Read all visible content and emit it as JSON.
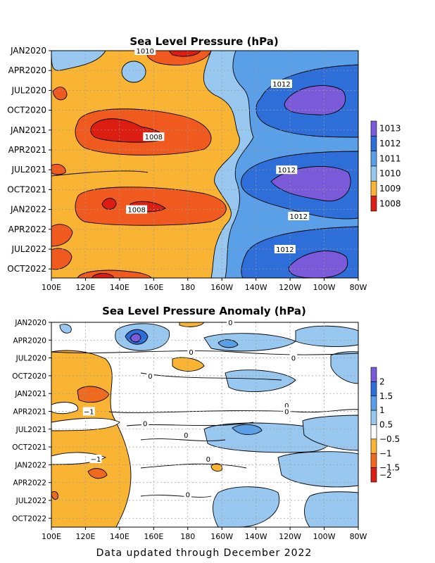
{
  "colors": {
    "p1008": "#dc1e12",
    "p1009": "#f05a1e",
    "p1009b": "#f8b432",
    "p1010": "#98c8f0",
    "p1011": "#5aa0e8",
    "p1012": "#2e6ed8",
    "p1013": "#7a5ad8",
    "a_n2": "#dc1e12",
    "a_n15": "#f06a1e",
    "a_n1": "#f8b432",
    "a_0": "#ffffff",
    "a_05": "#98c8f0",
    "a_1": "#5aa0e8",
    "a_15": "#2e6ed8",
    "a_2": "#7a5ad8"
  },
  "chart_data": [
    {
      "type": "heatmap",
      "title": "Sea Level Pressure (hPa)",
      "x_ticks": [
        "100E",
        "120E",
        "140E",
        "160E",
        "180",
        "160W",
        "140W",
        "120W",
        "100W",
        "80W"
      ],
      "y_ticks": [
        "JAN2020",
        "APR2020",
        "JUL2020",
        "OCT2020",
        "JAN2021",
        "APR2021",
        "JUL2021",
        "OCT2021",
        "JAN2022",
        "APR2022",
        "JUL2022",
        "OCT2022"
      ],
      "colorbar_labels": [
        "1013",
        "1012",
        "1011",
        "1010",
        "1009",
        "1008"
      ],
      "contour_labels": [
        {
          "text": "1010",
          "lon": 155,
          "time": "JAN2020"
        },
        {
          "text": "1012",
          "lon": -125,
          "time": "JUN2020"
        },
        {
          "text": "1008",
          "lon": 160,
          "time": "FEB2021"
        },
        {
          "text": "1012",
          "lon": -122,
          "time": "JUL2021"
        },
        {
          "text": "1008",
          "lon": 150,
          "time": "JAN2022"
        },
        {
          "text": "1012",
          "lon": -115,
          "time": "FEB2022"
        },
        {
          "text": "1012",
          "lon": -123,
          "time": "JUL2022"
        }
      ],
      "grid": true
    },
    {
      "type": "heatmap",
      "title": "Sea Level Pressure Anomaly (hPa)",
      "x_ticks": [
        "100E",
        "120E",
        "140E",
        "160E",
        "180",
        "160W",
        "140W",
        "120W",
        "100W",
        "80W"
      ],
      "y_ticks": [
        "JAN2020",
        "APR2020",
        "JUL2020",
        "OCT2020",
        "JAN2021",
        "APR2021",
        "JUL2021",
        "OCT2021",
        "JAN2022",
        "APR2022",
        "JUL2022",
        "OCT2022"
      ],
      "colorbar_labels": [
        "2",
        "1.5",
        "1",
        "0.5",
        "−0.5",
        "−1",
        "−1.5",
        "−2"
      ],
      "contour_labels": [
        {
          "text": "0",
          "lon": -155,
          "time": "JAN2020"
        },
        {
          "text": "0",
          "lon": -178,
          "time": "JUN2020"
        },
        {
          "text": "0",
          "lon": -118,
          "time": "JUL2020"
        },
        {
          "text": "0",
          "lon": 158,
          "time": "OCT2020"
        },
        {
          "text": "−1",
          "lon": 122,
          "time": "APR2021"
        },
        {
          "text": "0",
          "lon": -122,
          "time": "MAR2021"
        },
        {
          "text": "0",
          "lon": -122,
          "time": "APR2021"
        },
        {
          "text": "0",
          "lon": 155,
          "time": "JUN2021"
        },
        {
          "text": "0",
          "lon": 179,
          "time": "AUG2021"
        },
        {
          "text": "0",
          "lon": -168,
          "time": "DEC2021"
        },
        {
          "text": "−1",
          "lon": 126,
          "time": "DEC2021"
        },
        {
          "text": "0",
          "lon": -180,
          "time": "JUN2022"
        }
      ],
      "grid": true
    }
  ],
  "footer": "Data updated through December 2022"
}
